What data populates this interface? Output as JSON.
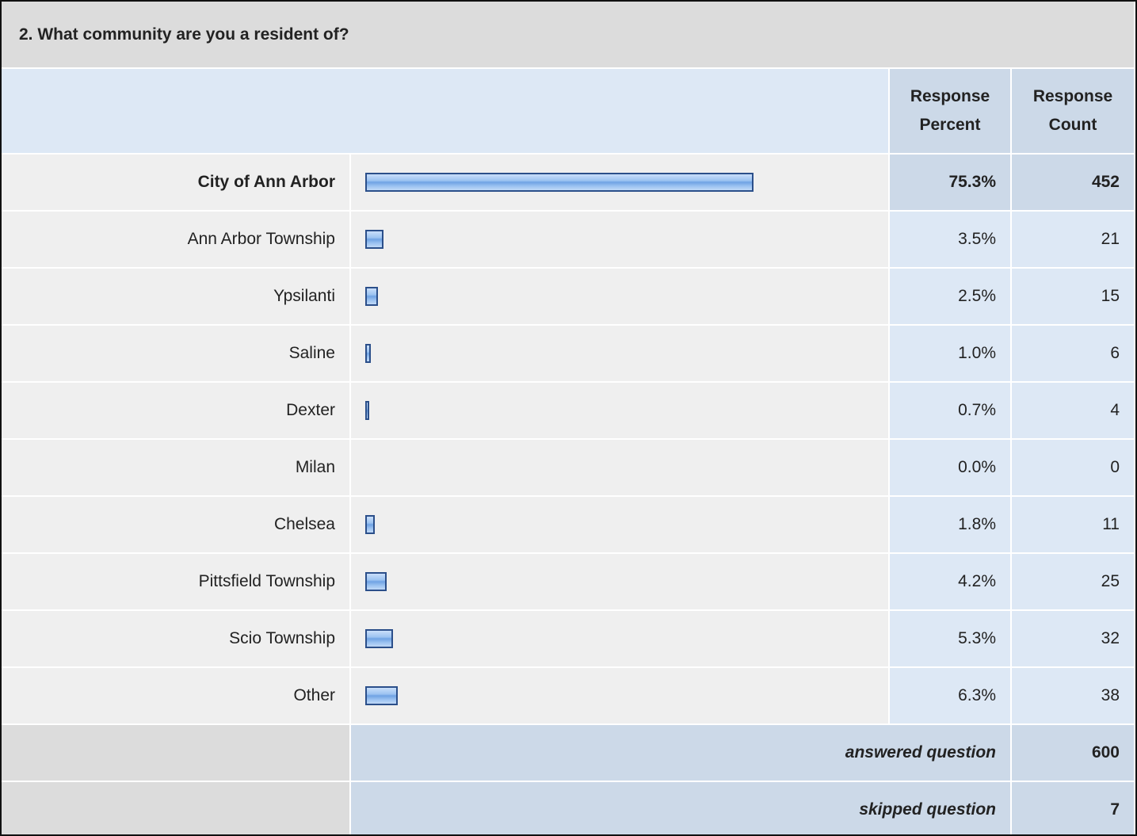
{
  "chart_data": {
    "type": "bar",
    "title": "2. What community are you a resident of?",
    "column_headers": [
      "Response Percent",
      "Response Count"
    ],
    "categories": [
      "City of Ann Arbor",
      "Ann Arbor Township",
      "Ypsilanti",
      "Saline",
      "Dexter",
      "Milan",
      "Chelsea",
      "Pittsfield Township",
      "Scio Township",
      "Other"
    ],
    "values": [
      75.3,
      3.5,
      2.5,
      1.0,
      0.7,
      0.0,
      1.8,
      4.2,
      5.3,
      6.3
    ],
    "value_labels": [
      "75.3%",
      "3.5%",
      "2.5%",
      "1.0%",
      "0.7%",
      "0.0%",
      "1.8%",
      "4.2%",
      "5.3%",
      "6.3%"
    ],
    "counts": [
      452,
      21,
      15,
      6,
      4,
      0,
      11,
      25,
      32,
      38
    ],
    "color": "#7fb0ea",
    "summary": [
      {
        "label": "answered question",
        "value": 600
      },
      {
        "label": "skipped question",
        "value": 7
      }
    ]
  }
}
